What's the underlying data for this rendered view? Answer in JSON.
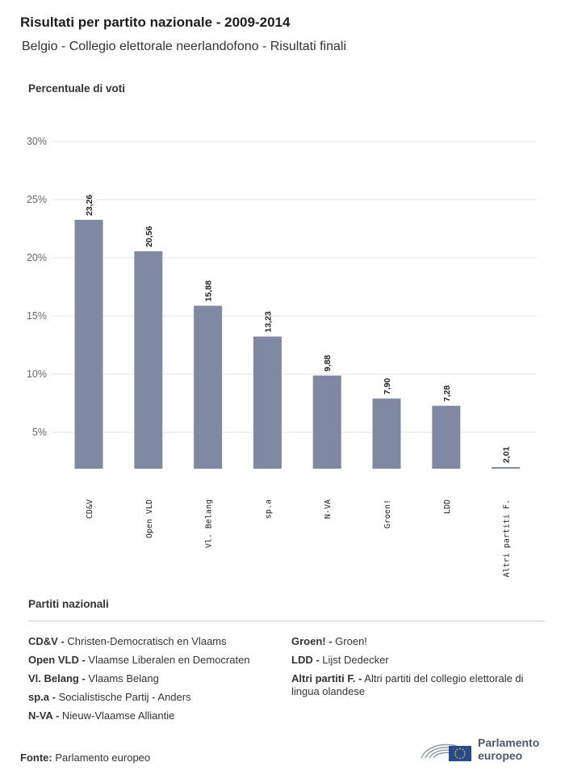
{
  "header": {
    "title": "Risultati per partito nazionale - 2009-2014",
    "subtitle": "Belgio - Collegio elettorale neerlandofono - Risultati finali"
  },
  "chart_data": {
    "type": "bar",
    "ylabel": "Percentuale di voti",
    "yticks": [
      "5%",
      "10%",
      "15%",
      "20%",
      "25%",
      "30%"
    ],
    "ylim": [
      0,
      30
    ],
    "grid": true,
    "bar_color": "#7f89a4",
    "categories": [
      "CD&V",
      "Open VLD",
      "Vl. Belang",
      "sp.a",
      "N-VA",
      "Groen!",
      "LDD",
      "Altri partiti F."
    ],
    "values": [
      23.26,
      20.56,
      15.88,
      13.23,
      9.88,
      7.9,
      7.28,
      2.01
    ],
    "value_labels": [
      "23,26",
      "20,56",
      "15,88",
      "13,23",
      "9,88",
      "7,90",
      "7,28",
      "2,01"
    ]
  },
  "legend": {
    "title": "Partiti nazionali",
    "left": [
      {
        "abbr": "CD&V -",
        "name": "Christen-Democratisch en Vlaams"
      },
      {
        "abbr": "Open VLD -",
        "name": "Vlaamse Liberalen en Democraten"
      },
      {
        "abbr": "Vl. Belang -",
        "name": "Vlaams Belang"
      },
      {
        "abbr": "sp.a -",
        "name": "Socialistische Partij - Anders"
      },
      {
        "abbr": "N-VA -",
        "name": "Nieuw-Vlaamse Alliantie"
      }
    ],
    "right": [
      {
        "abbr": "Groen! -",
        "name": "Groen!"
      },
      {
        "abbr": "LDD -",
        "name": "Lijst Dedecker"
      },
      {
        "abbr": "Altri partiti F. -",
        "name": "Altri partiti del collegio elettorale di lingua olandese"
      }
    ]
  },
  "source": {
    "label": "Fonte:",
    "value": "Parlamento europeo"
  },
  "logo": {
    "line1": "Parlamento",
    "line2": "europeo",
    "icon": "european-parliament-logo"
  }
}
